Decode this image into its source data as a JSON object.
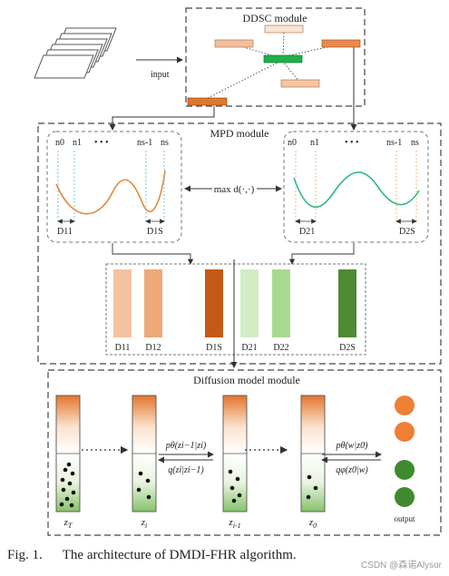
{
  "ddsc": {
    "title": "DDSC module",
    "input_label": "input"
  },
  "mpd": {
    "title": "MPD module",
    "left_labels": {
      "n0": "n0",
      "n1": "n1",
      "dots": "•  •  •",
      "ns1": "ns-1",
      "ns": "ns",
      "d_first": "D11",
      "d_last": "D1S"
    },
    "right_labels": {
      "n0": "n0",
      "n1": "n1",
      "dots": "•  •  •",
      "ns1": "ns-1",
      "ns": "ns",
      "d_first": "D21",
      "d_last": "D2S"
    },
    "max_label": "max d(·,·)",
    "bars": [
      {
        "label": "D11",
        "color": "#f4c2a1"
      },
      {
        "label": "D12",
        "color": "#efa878"
      },
      {
        "label": "D1S",
        "color": "#c45a17"
      },
      {
        "label": "D21",
        "color": "#d3ecc4"
      },
      {
        "label": "D22",
        "color": "#a8d98f"
      },
      {
        "label": "D2S",
        "color": "#4f8a34"
      }
    ]
  },
  "diffusion": {
    "title": "Diffusion model module",
    "columns": [
      {
        "label": "z_T"
      },
      {
        "label": "z_i"
      },
      {
        "label": "z_{i-1}"
      },
      {
        "label": "z_0"
      }
    ],
    "arrow_labels": {
      "forward_top": "pθ(zi−1|zi)",
      "forward_bottom": "q(zi|zi−1)",
      "out_top": "pθ(w|z0)",
      "out_bottom": "qφ(z0|w)"
    },
    "output_label": "output",
    "output_colors": [
      "#ef7f35",
      "#ef7f35",
      "#3f8a2e",
      "#3f8a2e"
    ]
  },
  "caption": {
    "fig": "Fig. 1.",
    "text": "The architecture of DMDI-FHR algorithm."
  },
  "watermark": "CSDN @森诺Alysor"
}
